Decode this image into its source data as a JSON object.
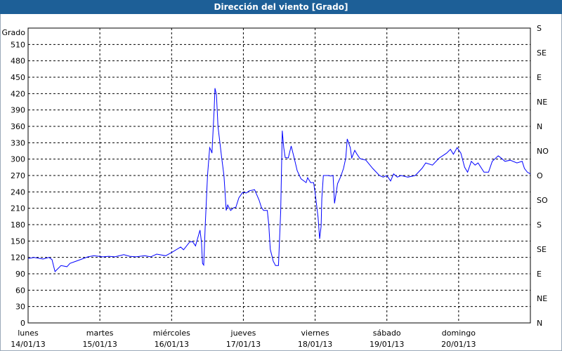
{
  "title": "Dirección del viento [Grado]",
  "colors": {
    "title_bar": "#1d5f97",
    "line": "#0000ff",
    "grid": "#000000"
  },
  "chart_data": {
    "type": "line",
    "title": "Dirección del viento [Grado]",
    "ylabel": "Grado",
    "ylim": [
      0,
      540
    ],
    "yticks": [
      0,
      30,
      60,
      90,
      120,
      150,
      180,
      210,
      240,
      270,
      300,
      330,
      360,
      390,
      420,
      450,
      480,
      510
    ],
    "y2ticks": [
      {
        "value": 0,
        "label": "N"
      },
      {
        "value": 45,
        "label": "NE"
      },
      {
        "value": 90,
        "label": "E"
      },
      {
        "value": 135,
        "label": "SE"
      },
      {
        "value": 180,
        "label": "S"
      },
      {
        "value": 225,
        "label": "SO"
      },
      {
        "value": 270,
        "label": "O"
      },
      {
        "value": 315,
        "label": "NO"
      },
      {
        "value": 360,
        "label": "N"
      },
      {
        "value": 405,
        "label": "NE"
      },
      {
        "value": 450,
        "label": "E"
      },
      {
        "value": 495,
        "label": "SE"
      },
      {
        "value": 540,
        "label": "S"
      }
    ],
    "xticks": [
      {
        "day": "lunes",
        "date": "14/01/13"
      },
      {
        "day": "martes",
        "date": "15/01/13"
      },
      {
        "day": "miércoles",
        "date": "16/01/13"
      },
      {
        "day": "jueves",
        "date": "17/01/13"
      },
      {
        "day": "viernes",
        "date": "18/01/13"
      },
      {
        "day": "sábado",
        "date": "19/01/13"
      },
      {
        "day": "domingo",
        "date": "20/01/13"
      }
    ],
    "xlim": [
      "14/01/13 00:00",
      "21/01/13 00:00"
    ],
    "grid": true,
    "series": [
      {
        "points": [
          [
            "14/01/13 00:00",
            118
          ],
          [
            "14/01/13 02:00",
            120
          ],
          [
            "14/01/13 05:00",
            117
          ],
          [
            "14/01/13 07:00",
            120
          ],
          [
            "14/01/13 08:00",
            116
          ],
          [
            "14/01/13 09:00",
            94
          ],
          [
            "14/01/13 11:00",
            105
          ],
          [
            "14/01/13 13:00",
            103
          ],
          [
            "14/01/13 14:00",
            109
          ],
          [
            "14/01/13 16:00",
            113
          ],
          [
            "14/01/13 18:00",
            117
          ],
          [
            "14/01/13 20:00",
            121
          ],
          [
            "14/01/13 22:00",
            123
          ],
          [
            "15/01/13 01:00",
            121
          ],
          [
            "15/01/13 03:00",
            122
          ],
          [
            "15/01/13 05:00",
            121
          ],
          [
            "15/01/13 08:00",
            125
          ],
          [
            "15/01/13 10:00",
            122
          ],
          [
            "15/01/13 12:00",
            121
          ],
          [
            "15/01/13 15:00",
            123
          ],
          [
            "15/01/13 17:00",
            121
          ],
          [
            "15/01/13 19:00",
            126
          ],
          [
            "15/01/13 22:00",
            123
          ],
          [
            "16/01/13 00:00",
            129
          ],
          [
            "16/01/13 03:00",
            139
          ],
          [
            "16/01/13 04:00",
            134
          ],
          [
            "16/01/13 06:00",
            148
          ],
          [
            "16/01/13 07:00",
            149
          ],
          [
            "16/01/13 08:00",
            141
          ],
          [
            "16/01/13 09:30",
            170
          ],
          [
            "16/01/13 10:00",
            148
          ],
          [
            "16/01/13 10:20",
            109
          ],
          [
            "16/01/13 10:45",
            106
          ],
          [
            "16/01/13 11:15",
            180
          ],
          [
            "16/01/13 12:00",
            270
          ],
          [
            "16/01/13 12:45",
            321
          ],
          [
            "16/01/13 13:15",
            315
          ],
          [
            "16/01/13 13:30",
            311
          ],
          [
            "16/01/13 14:15",
            392
          ],
          [
            "16/01/13 14:30",
            430
          ],
          [
            "16/01/13 15:00",
            418
          ],
          [
            "16/01/13 15:30",
            360
          ],
          [
            "16/01/13 16:45",
            302
          ],
          [
            "16/01/13 17:30",
            270
          ],
          [
            "16/01/13 18:15",
            206
          ],
          [
            "16/01/13 18:45",
            216
          ],
          [
            "16/01/13 19:45",
            206
          ],
          [
            "16/01/13 20:45",
            211
          ],
          [
            "16/01/13 21:30",
            212
          ],
          [
            "16/01/13 22:30",
            229
          ],
          [
            "16/01/13 23:45",
            239
          ],
          [
            "17/01/13 01:00",
            238
          ],
          [
            "17/01/13 02:00",
            242
          ],
          [
            "17/01/13 03:45",
            244
          ],
          [
            "17/01/13 05:15",
            225
          ],
          [
            "17/01/13 06:00",
            212
          ],
          [
            "17/01/13 06:45",
            206
          ],
          [
            "17/01/13 08:00",
            206
          ],
          [
            "17/01/13 08:30",
            180
          ],
          [
            "17/01/13 09:00",
            135
          ],
          [
            "17/01/13 10:00",
            113
          ],
          [
            "17/01/13 10:45",
            105
          ],
          [
            "17/01/13 11:45",
            105
          ],
          [
            "17/01/13 12:30",
            206
          ],
          [
            "17/01/13 13:00",
            352
          ],
          [
            "17/01/13 13:30",
            321
          ],
          [
            "17/01/13 14:00",
            303
          ],
          [
            "17/01/13 15:00",
            302
          ],
          [
            "17/01/13 16:00",
            324
          ],
          [
            "17/01/13 17:00",
            302
          ],
          [
            "17/01/13 18:00",
            279
          ],
          [
            "17/01/13 19:15",
            264
          ],
          [
            "17/01/13 21:00",
            257
          ],
          [
            "17/01/13 21:30",
            266
          ],
          [
            "17/01/13 22:30",
            257
          ],
          [
            "17/01/13 23:30",
            257
          ],
          [
            "18/01/13 00:00",
            238
          ],
          [
            "18/01/13 01:00",
            193
          ],
          [
            "18/01/13 01:30",
            154
          ],
          [
            "18/01/13 02:00",
            177
          ],
          [
            "18/01/13 02:15",
            228
          ],
          [
            "18/01/13 02:45",
            270
          ],
          [
            "18/01/13 04:15",
            270
          ],
          [
            "18/01/13 05:15",
            269
          ],
          [
            "18/01/13 06:00",
            270
          ],
          [
            "18/01/13 06:30",
            219
          ],
          [
            "18/01/13 07:30",
            255
          ],
          [
            "18/01/13 08:30",
            267
          ],
          [
            "18/01/13 09:30",
            283
          ],
          [
            "18/01/13 10:15",
            302
          ],
          [
            "18/01/13 10:45",
            337
          ],
          [
            "18/01/13 11:45",
            321
          ],
          [
            "18/01/13 12:15",
            302
          ],
          [
            "18/01/13 13:15",
            316
          ],
          [
            "18/01/13 14:00",
            309
          ],
          [
            "18/01/13 15:00",
            301
          ],
          [
            "18/01/13 17:00",
            298
          ],
          [
            "18/01/13 19:15",
            283
          ],
          [
            "18/01/13 21:30",
            270
          ],
          [
            "18/01/13 22:45",
            267
          ],
          [
            "19/01/13 00:00",
            270
          ],
          [
            "19/01/13 01:15",
            260
          ],
          [
            "19/01/13 02:15",
            273
          ],
          [
            "19/01/13 03:30",
            267
          ],
          [
            "19/01/13 04:45",
            270
          ],
          [
            "19/01/13 07:00",
            267
          ],
          [
            "19/01/13 09:30",
            270
          ],
          [
            "19/01/13 11:45",
            283
          ],
          [
            "19/01/13 13:00",
            293
          ],
          [
            "19/01/13 15:15",
            289
          ],
          [
            "19/01/13 17:30",
            302
          ],
          [
            "19/01/13 20:00",
            311
          ],
          [
            "19/01/13 21:15",
            318
          ],
          [
            "19/01/13 22:15",
            309
          ],
          [
            "19/01/13 23:30",
            321
          ],
          [
            "20/01/13 00:45",
            311
          ],
          [
            "20/01/13 02:00",
            285
          ],
          [
            "20/01/13 03:00",
            276
          ],
          [
            "20/01/13 04:15",
            296
          ],
          [
            "20/01/13 05:30",
            289
          ],
          [
            "20/01/13 06:30",
            293
          ],
          [
            "20/01/13 08:30",
            276
          ],
          [
            "20/01/13 10:00",
            276
          ],
          [
            "20/01/13 11:15",
            296
          ],
          [
            "20/01/13 13:15",
            306
          ],
          [
            "20/01/13 14:00",
            303
          ],
          [
            "20/01/13 15:30",
            296
          ],
          [
            "20/01/13 17:15",
            298
          ],
          [
            "20/01/13 19:30",
            293
          ],
          [
            "20/01/13 21:15",
            296
          ],
          [
            "20/01/13 22:00",
            283
          ],
          [
            "20/01/13 23:00",
            276
          ],
          [
            "21/01/13 00:00",
            273
          ]
        ]
      }
    ]
  }
}
